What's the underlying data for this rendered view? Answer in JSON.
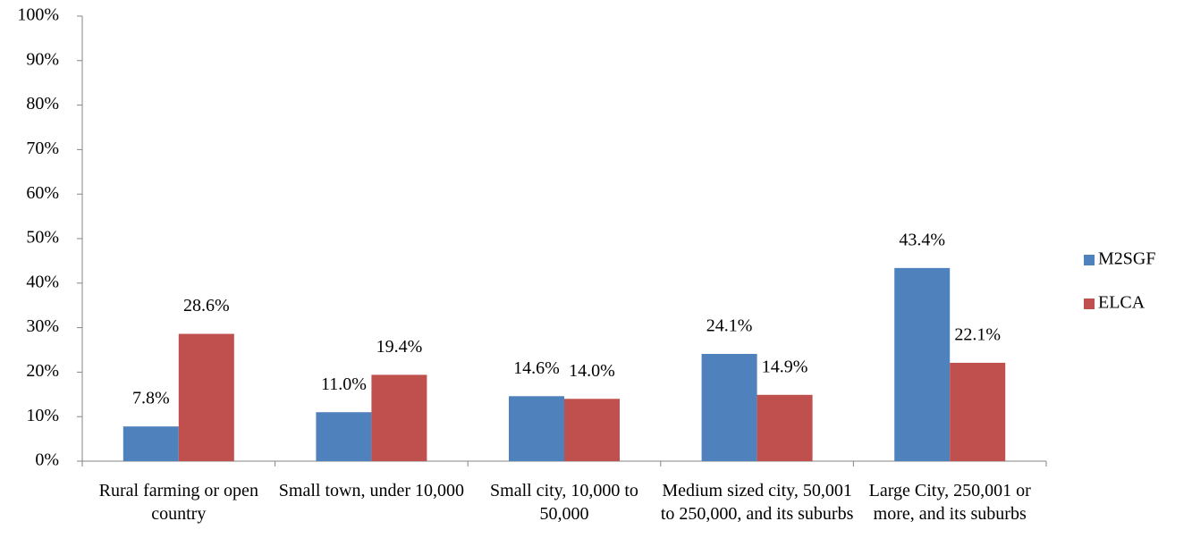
{
  "chart_data": {
    "type": "bar",
    "categories": [
      "Rural farming or open country",
      "Small town, under 10,000",
      "Small city, 10,000 to 50,000",
      "Medium sized city, 50,001 to 250,000, and its suburbs",
      "Large City, 250,001 or more, and its suburbs"
    ],
    "series": [
      {
        "name": "M2SGF",
        "color": "#4f81bd",
        "values": [
          7.8,
          11.0,
          14.6,
          24.1,
          43.4
        ],
        "value_labels": [
          "7.8%",
          "11.0%",
          "14.6%",
          "24.1%",
          "43.4%"
        ]
      },
      {
        "name": "ELCA",
        "color": "#c0504d",
        "values": [
          28.6,
          19.4,
          14.0,
          14.9,
          22.1
        ],
        "value_labels": [
          "28.6%",
          "19.4%",
          "14.0%",
          "14.9%",
          "22.1%"
        ]
      }
    ],
    "ylim": [
      0,
      100
    ],
    "yticks": [
      {
        "value": 0,
        "label": "0%"
      },
      {
        "value": 10,
        "label": "10%"
      },
      {
        "value": 20,
        "label": "20%"
      },
      {
        "value": 30,
        "label": "30%"
      },
      {
        "value": 40,
        "label": "40%"
      },
      {
        "value": 50,
        "label": "50%"
      },
      {
        "value": 60,
        "label": "60%"
      },
      {
        "value": 70,
        "label": "70%"
      },
      {
        "value": 80,
        "label": "80%"
      },
      {
        "value": 90,
        "label": "90%"
      },
      {
        "value": 100,
        "label": "100%"
      }
    ],
    "grid": false,
    "legend": "right"
  }
}
